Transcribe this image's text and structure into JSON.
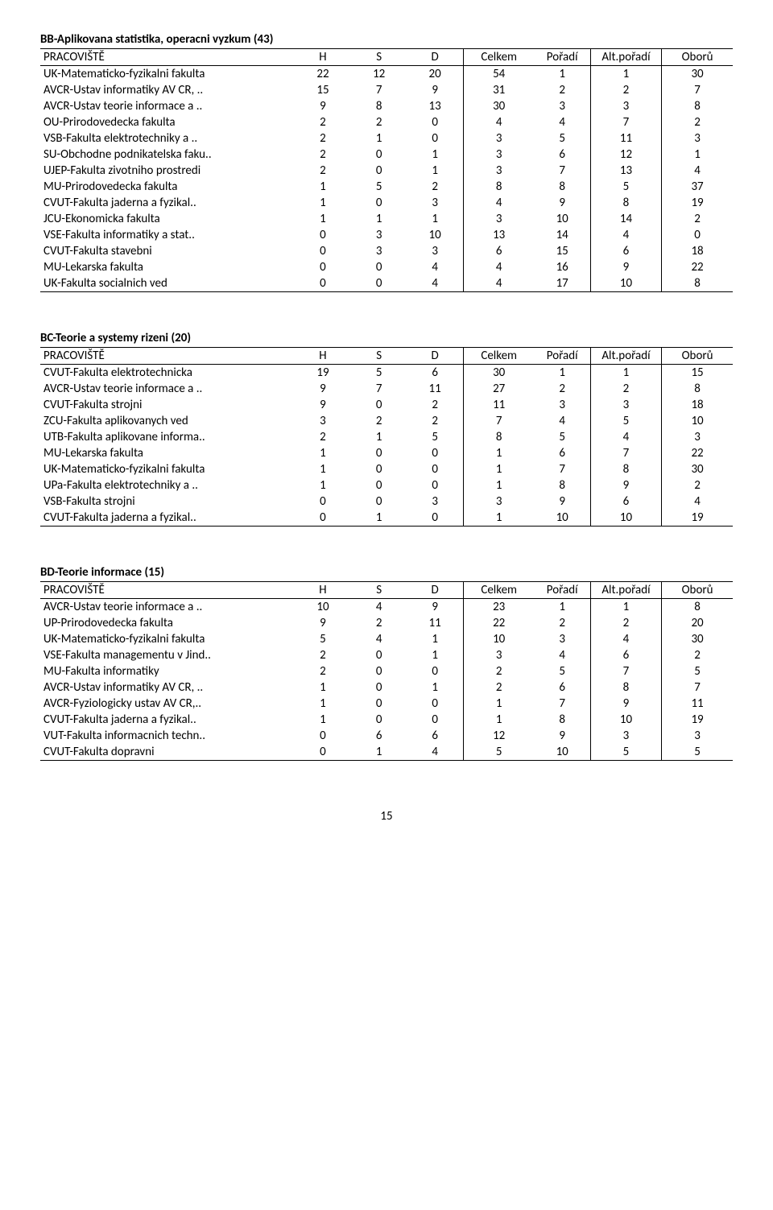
{
  "page_number": "15",
  "columns": [
    "PRACOVIŠTĚ",
    "H",
    "S",
    "D",
    "Celkem",
    "Pořadí",
    "Alt.pořadí",
    "Oborů"
  ],
  "sections": [
    {
      "title": "BB-Aplikovana statistika, operacni vyzkum (43)",
      "rows": [
        [
          "UK-Matematicko-fyzikalni fakulta",
          "22",
          "12",
          "20",
          "54",
          "1",
          "1",
          "30"
        ],
        [
          "AVCR-Ustav informatiky AV CR, ..",
          "15",
          "7",
          "9",
          "31",
          "2",
          "2",
          "7"
        ],
        [
          "AVCR-Ustav teorie informace a ..",
          "9",
          "8",
          "13",
          "30",
          "3",
          "3",
          "8"
        ],
        [
          "OU-Prirodovedecka fakulta",
          "2",
          "2",
          "0",
          "4",
          "4",
          "7",
          "2"
        ],
        [
          "VSB-Fakulta elektrotechniky a ..",
          "2",
          "1",
          "0",
          "3",
          "5",
          "11",
          "3"
        ],
        [
          "SU-Obchodne podnikatelska faku..",
          "2",
          "0",
          "1",
          "3",
          "6",
          "12",
          "1"
        ],
        [
          "UJEP-Fakulta zivotniho prostredi",
          "2",
          "0",
          "1",
          "3",
          "7",
          "13",
          "4"
        ],
        [
          "MU-Prirodovedecka fakulta",
          "1",
          "5",
          "2",
          "8",
          "8",
          "5",
          "37"
        ],
        [
          "CVUT-Fakulta jaderna a fyzikal..",
          "1",
          "0",
          "3",
          "4",
          "9",
          "8",
          "19"
        ],
        [
          "JCU-Ekonomicka fakulta",
          "1",
          "1",
          "1",
          "3",
          "10",
          "14",
          "2"
        ],
        [
          "VSE-Fakulta informatiky a stat..",
          "0",
          "3",
          "10",
          "13",
          "14",
          "4",
          "0"
        ],
        [
          "CVUT-Fakulta stavebni",
          "0",
          "3",
          "3",
          "6",
          "15",
          "6",
          "18"
        ],
        [
          "MU-Lekarska fakulta",
          "0",
          "0",
          "4",
          "4",
          "16",
          "9",
          "22"
        ],
        [
          "UK-Fakulta socialnich ved",
          "0",
          "0",
          "4",
          "4",
          "17",
          "10",
          "8"
        ]
      ]
    },
    {
      "title": "BC-Teorie a systemy rizeni (20)",
      "rows": [
        [
          "CVUT-Fakulta elektrotechnicka",
          "19",
          "5",
          "6",
          "30",
          "1",
          "1",
          "15"
        ],
        [
          "AVCR-Ustav teorie informace a ..",
          "9",
          "7",
          "11",
          "27",
          "2",
          "2",
          "8"
        ],
        [
          "CVUT-Fakulta strojni",
          "9",
          "0",
          "2",
          "11",
          "3",
          "3",
          "18"
        ],
        [
          "ZCU-Fakulta aplikovanych ved",
          "3",
          "2",
          "2",
          "7",
          "4",
          "5",
          "10"
        ],
        [
          "UTB-Fakulta aplikovane informa..",
          "2",
          "1",
          "5",
          "8",
          "5",
          "4",
          "3"
        ],
        [
          "MU-Lekarska fakulta",
          "1",
          "0",
          "0",
          "1",
          "6",
          "7",
          "22"
        ],
        [
          "UK-Matematicko-fyzikalni fakulta",
          "1",
          "0",
          "0",
          "1",
          "7",
          "8",
          "30"
        ],
        [
          "UPa-Fakulta elektrotechniky a ..",
          "1",
          "0",
          "0",
          "1",
          "8",
          "9",
          "2"
        ],
        [
          "VSB-Fakulta strojni",
          "0",
          "0",
          "3",
          "3",
          "9",
          "6",
          "4"
        ],
        [
          "CVUT-Fakulta jaderna a fyzikal..",
          "0",
          "1",
          "0",
          "1",
          "10",
          "10",
          "19"
        ]
      ]
    },
    {
      "title": "BD-Teorie informace (15)",
      "rows": [
        [
          "AVCR-Ustav teorie informace a ..",
          "10",
          "4",
          "9",
          "23",
          "1",
          "1",
          "8"
        ],
        [
          "UP-Prirodovedecka fakulta",
          "9",
          "2",
          "11",
          "22",
          "2",
          "2",
          "20"
        ],
        [
          "UK-Matematicko-fyzikalni fakulta",
          "5",
          "4",
          "1",
          "10",
          "3",
          "4",
          "30"
        ],
        [
          "VSE-Fakulta managementu v Jind..",
          "2",
          "0",
          "1",
          "3",
          "4",
          "6",
          "2"
        ],
        [
          "MU-Fakulta informatiky",
          "2",
          "0",
          "0",
          "2",
          "5",
          "7",
          "5"
        ],
        [
          "AVCR-Ustav informatiky AV CR, ..",
          "1",
          "0",
          "1",
          "2",
          "6",
          "8",
          "7"
        ],
        [
          "AVCR-Fyziologicky ustav AV CR,..",
          "1",
          "0",
          "0",
          "1",
          "7",
          "9",
          "11"
        ],
        [
          "CVUT-Fakulta jaderna a fyzikal..",
          "1",
          "0",
          "0",
          "1",
          "8",
          "10",
          "19"
        ],
        [
          "VUT-Fakulta informacnich techn..",
          "0",
          "6",
          "6",
          "12",
          "9",
          "3",
          "3"
        ],
        [
          "CVUT-Fakulta dopravni",
          "0",
          "1",
          "4",
          "5",
          "10",
          "5",
          "5"
        ]
      ]
    }
  ]
}
